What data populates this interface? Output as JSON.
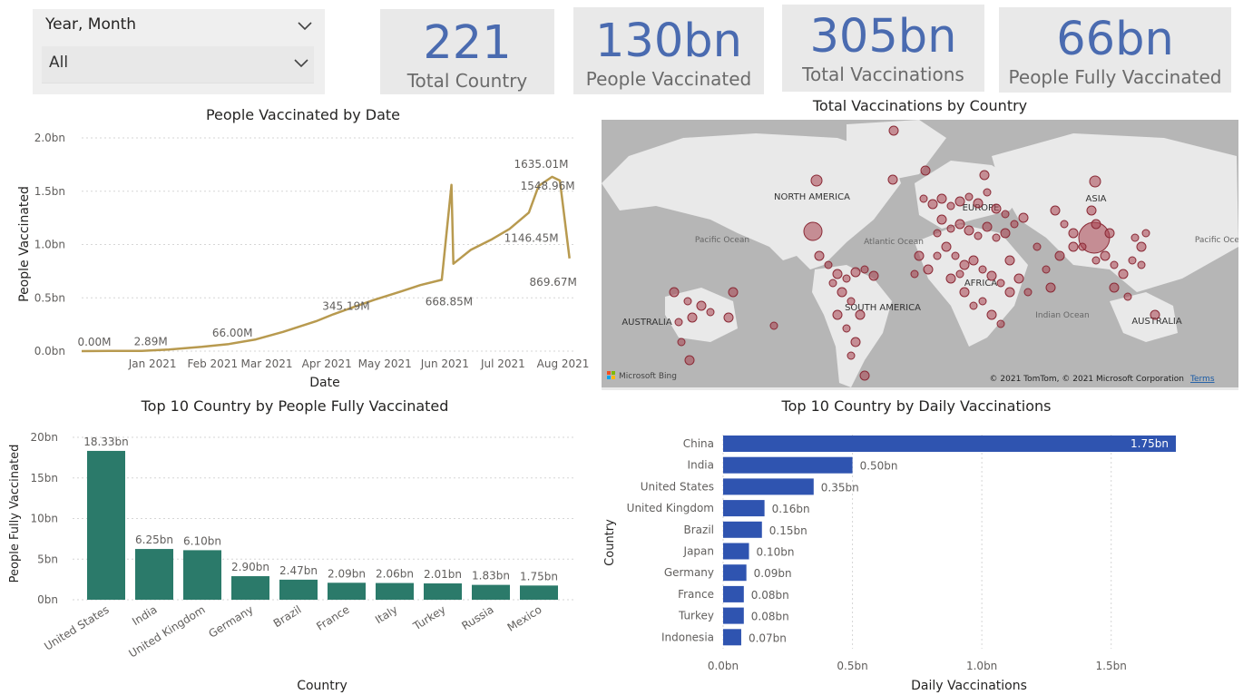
{
  "slicer": {
    "title": "Year, Month",
    "value": "All"
  },
  "cards": [
    {
      "value": "221",
      "label": "Total Country"
    },
    {
      "value": "130bn",
      "label": "People Vaccinated"
    },
    {
      "value": "305bn",
      "label": "Total Vaccinations"
    },
    {
      "value": "66bn",
      "label": "People Fully Vaccinated"
    }
  ],
  "colors": {
    "line": "#b89a4f",
    "teal_bar": "#2b7a6a",
    "blue_bar": "#2f54b0",
    "bubble": "#a8424f",
    "card_value": "#4a6bb0"
  },
  "map": {
    "title": "Total Vaccinations by Country",
    "labels": [
      "NORTH AMERICA",
      "EUROPE",
      "ASIA",
      "SOUTH AMERICA",
      "AFRICA",
      "AUSTRALIA",
      "AUSTRALIA",
      "Pacific Ocean",
      "Atlantic Ocean",
      "Indian Ocean",
      "Pacific Ocean"
    ],
    "attribution": "© 2021 TomTom, © 2021 Microsoft Corporation",
    "terms": "Terms",
    "logo": "Microsoft Bing"
  },
  "chart_data": [
    {
      "type": "line",
      "title": "People Vaccinated by Date",
      "xlabel": "Date",
      "ylabel": "People Vaccinated",
      "ylim": [
        0,
        2000000000
      ],
      "yticks": [
        "0.0bn",
        "0.5bn",
        "1.0bn",
        "1.5bn",
        "2.0bn"
      ],
      "xticks": [
        "Jan 2021",
        "Feb 2021",
        "Mar 2021",
        "Apr 2021",
        "May 2021",
        "Jun 2021",
        "Jul 2021",
        "Aug 2021"
      ],
      "grid": true,
      "points": [
        [
          "2020-12-01",
          0
        ],
        [
          "2020-12-15",
          2000000
        ],
        [
          "2021-01-01",
          2890000
        ],
        [
          "2021-01-15",
          15000000
        ],
        [
          "2021-02-01",
          40000000
        ],
        [
          "2021-02-15",
          66000000
        ],
        [
          "2021-03-01",
          110000000
        ],
        [
          "2021-03-15",
          180000000
        ],
        [
          "2021-04-01",
          280000000
        ],
        [
          "2021-04-10",
          345190000
        ],
        [
          "2021-04-20",
          410000000
        ],
        [
          "2021-05-01",
          480000000
        ],
        [
          "2021-05-15",
          560000000
        ],
        [
          "2021-05-25",
          620000000
        ],
        [
          "2021-06-05",
          668850000
        ],
        [
          "2021-06-10",
          1560000000
        ],
        [
          "2021-06-11",
          820000000
        ],
        [
          "2021-06-20",
          950000000
        ],
        [
          "2021-07-01",
          1050000000
        ],
        [
          "2021-07-10",
          1146450000
        ],
        [
          "2021-07-20",
          1300000000
        ],
        [
          "2021-07-25",
          1548960000
        ],
        [
          "2021-08-01",
          1635010000
        ],
        [
          "2021-08-05",
          1600000000
        ],
        [
          "2021-08-10",
          869670000
        ]
      ],
      "data_labels": [
        {
          "x": "2020-12-01",
          "text": "0.00M"
        },
        {
          "x": "2021-01-01",
          "text": "2.89M"
        },
        {
          "x": "2021-02-15",
          "text": "66.00M"
        },
        {
          "x": "2021-04-10",
          "text": "345.19M"
        },
        {
          "x": "2021-06-05",
          "text": "668.85M"
        },
        {
          "x": "2021-07-10",
          "text": "1146.45M"
        },
        {
          "x": "2021-07-25",
          "text": "1548.96M"
        },
        {
          "x": "2021-08-01",
          "text": "1635.01M"
        },
        {
          "x": "2021-08-10",
          "text": "869.67M"
        }
      ]
    },
    {
      "type": "bar",
      "title": "Top 10 Country by People Fully Vaccinated",
      "xlabel": "Country",
      "ylabel": "People Fully Vaccinated",
      "ylim": [
        0,
        20
      ],
      "yticks": [
        "0bn",
        "5bn",
        "10bn",
        "15bn",
        "20bn"
      ],
      "categories": [
        "United States",
        "India",
        "United Kingdom",
        "Germany",
        "Brazil",
        "France",
        "Italy",
        "Turkey",
        "Russia",
        "Mexico"
      ],
      "values": [
        18.33,
        6.25,
        6.1,
        2.9,
        2.47,
        2.09,
        2.06,
        2.01,
        1.83,
        1.75
      ],
      "labels": [
        "18.33bn",
        "6.25bn",
        "6.10bn",
        "2.90bn",
        "2.47bn",
        "2.09bn",
        "2.06bn",
        "2.01bn",
        "1.83bn",
        "1.75bn"
      ]
    },
    {
      "type": "bar",
      "orientation": "horizontal",
      "title": "Top 10 Country by Daily Vaccinations",
      "xlabel": "Daily Vaccinations",
      "ylabel": "Country",
      "xlim": [
        0,
        1.75
      ],
      "xticks": [
        "0.0bn",
        "0.5bn",
        "1.0bn",
        "1.5bn"
      ],
      "categories": [
        "China",
        "India",
        "United States",
        "United Kingdom",
        "Brazil",
        "Japan",
        "Germany",
        "France",
        "Turkey",
        "Indonesia"
      ],
      "values": [
        1.75,
        0.5,
        0.35,
        0.16,
        0.15,
        0.1,
        0.09,
        0.08,
        0.08,
        0.07
      ],
      "labels": [
        "1.75bn",
        "0.50bn",
        "0.35bn",
        "0.16bn",
        "0.15bn",
        "0.10bn",
        "0.09bn",
        "0.08bn",
        "0.08bn",
        "0.07bn"
      ]
    }
  ]
}
